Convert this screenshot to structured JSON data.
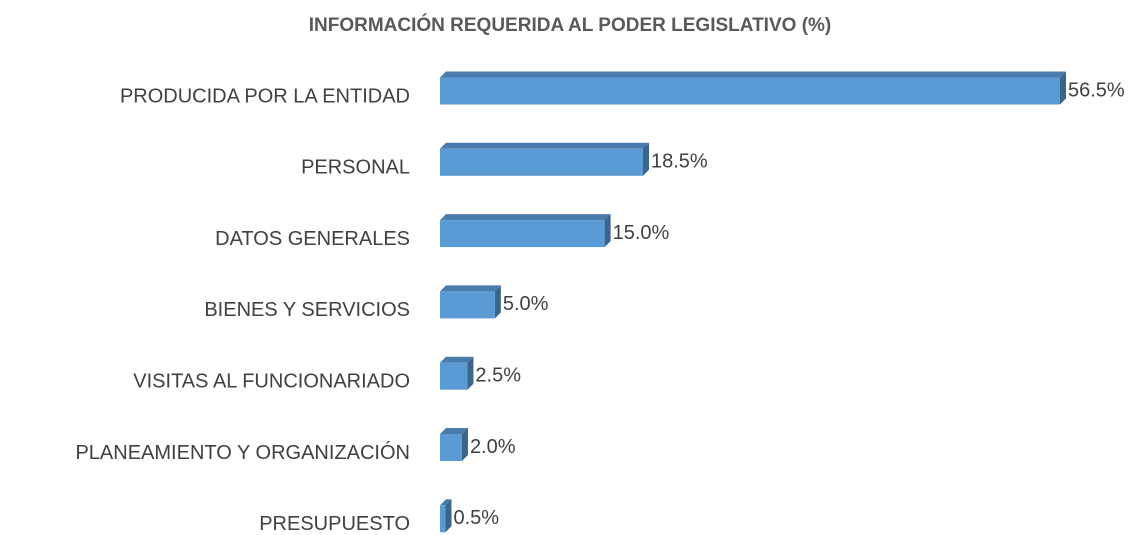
{
  "chart_data": {
    "type": "bar3d_horizontal",
    "title": "INFORMACIÓN REQUERIDA AL PODER LEGISLATIVO (%)",
    "categories": [
      "PRODUCIDA POR LA ENTIDAD",
      "PERSONAL",
      "DATOS GENERALES",
      "BIENES Y SERVICIOS",
      "VISITAS AL FUNCIONARIADO",
      "PLANEAMIENTO Y ORGANIZACIÓN",
      "PRESUPUESTO"
    ],
    "values": [
      56.5,
      18.5,
      15.0,
      5.0,
      2.5,
      2.0,
      0.5
    ],
    "value_labels": [
      "56.5%",
      "18.5%",
      "15.0%",
      "5.0%",
      "2.5%",
      "2.0%",
      "0.5%"
    ],
    "color": "#5b9bd5"
  }
}
